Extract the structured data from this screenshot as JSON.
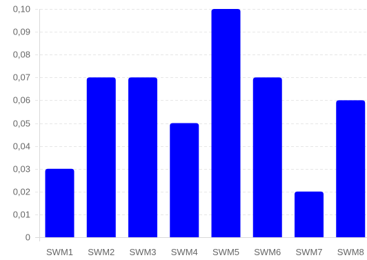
{
  "chart_data": {
    "type": "bar",
    "categories": [
      "SWM1",
      "SWM2",
      "SWM3",
      "SWM4",
      "SWM5",
      "SWM6",
      "SWM7",
      "SWM8"
    ],
    "values": [
      0.03,
      0.07,
      0.07,
      0.05,
      0.1,
      0.07,
      0.02,
      0.06
    ],
    "y_ticks": [
      "0",
      "0,01",
      "0,02",
      "0,03",
      "0,04",
      "0,05",
      "0,06",
      "0,07",
      "0,08",
      "0,09",
      "0,10"
    ],
    "ylim": [
      0,
      0.1
    ],
    "title": "",
    "xlabel": "",
    "ylabel": "",
    "grid": "horizontal dashed",
    "legend": "none",
    "colors": {
      "bar": "#0000ff",
      "grid": "#e6e6e6",
      "axis": "#d9d9d9",
      "text": "#666666"
    }
  }
}
